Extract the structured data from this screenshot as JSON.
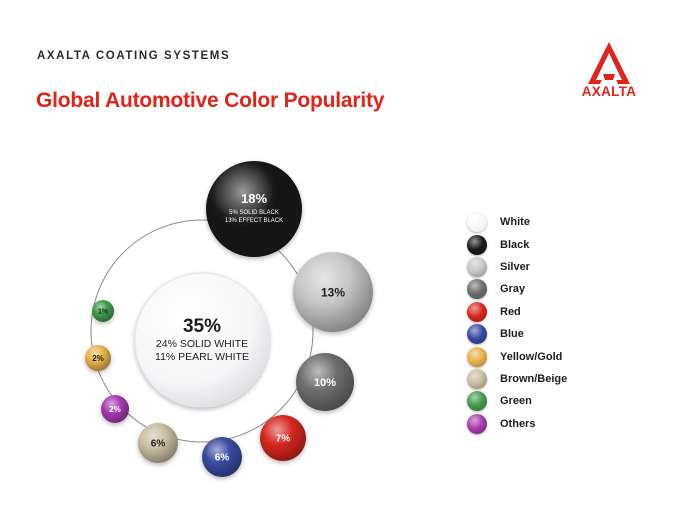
{
  "header": {
    "brand_line": "AXALTA COATING SYSTEMS",
    "title": "Global Automotive Color Popularity",
    "logo_text": "AXALTA"
  },
  "colors": {
    "brand_red": "#e2231a",
    "text_dark": "#2b2b2b"
  },
  "chart_data": {
    "type": "bubble",
    "title": "Global Automotive Color Popularity",
    "unit": "%",
    "bubbles": [
      {
        "color": "White",
        "value": 35,
        "label": "35%",
        "detail": [
          "24% SOLID WHITE",
          "11% PEARL WHITE"
        ]
      },
      {
        "color": "Black",
        "value": 18,
        "label": "18%",
        "detail": [
          "5% SOLID BLACK",
          "13% EFFECT BLACK"
        ]
      },
      {
        "color": "Silver",
        "value": 13,
        "label": "13%"
      },
      {
        "color": "Gray",
        "value": 10,
        "label": "10%"
      },
      {
        "color": "Red",
        "value": 7,
        "label": "7%"
      },
      {
        "color": "Blue",
        "value": 6,
        "label": "6%"
      },
      {
        "color": "Brown/Beige",
        "value": 6,
        "label": "6%"
      },
      {
        "color": "Others",
        "value": 2,
        "label": "2%"
      },
      {
        "color": "Yellow/Gold",
        "value": 2,
        "label": "2%"
      },
      {
        "color": "Green",
        "value": 1,
        "label": "1%"
      }
    ],
    "legend": {
      "position": "right",
      "entries": [
        {
          "name": "White",
          "color": "#ffffff"
        },
        {
          "name": "Black",
          "color": "#1a1a1a"
        },
        {
          "name": "Silver",
          "color": "#c7c7c7"
        },
        {
          "name": "Gray",
          "color": "#6e6e6e"
        },
        {
          "name": "Red",
          "color": "#d7271f"
        },
        {
          "name": "Blue",
          "color": "#3a4aa2"
        },
        {
          "name": "Yellow/Gold",
          "color": "#e8b34a"
        },
        {
          "name": "Brown/Beige",
          "color": "#c9bda2"
        },
        {
          "name": "Green",
          "color": "#3f9b4a"
        },
        {
          "name": "Others",
          "color": "#a43bb0"
        }
      ]
    }
  }
}
